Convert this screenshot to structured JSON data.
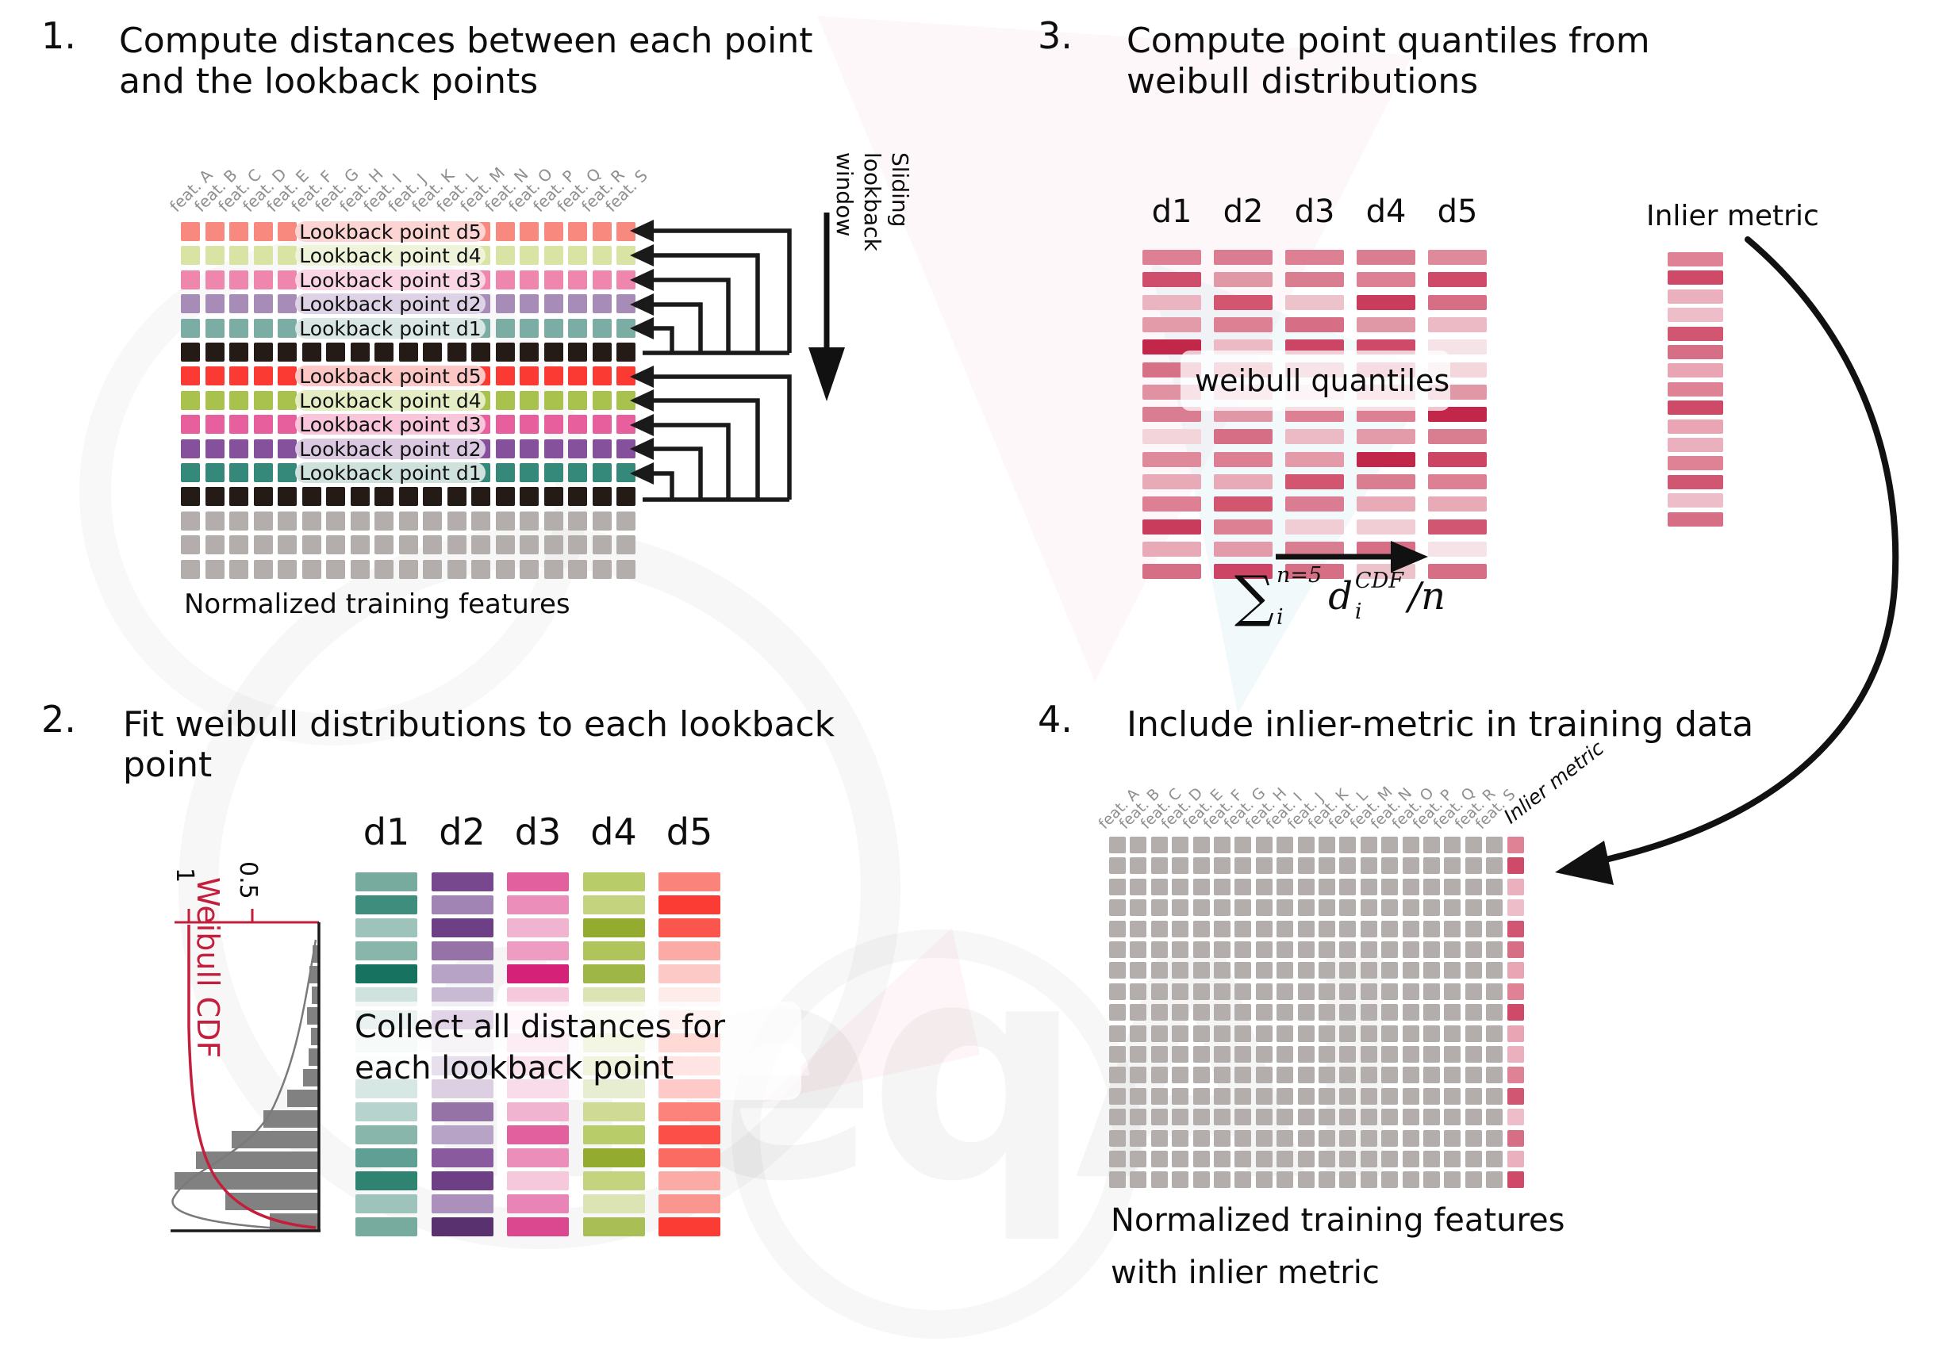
{
  "p1": {
    "number": "1.",
    "title": "Compute distances between each point and the lookback points",
    "caption": "Normalized training features",
    "sliding": "Sliding\nlookback\nwindow",
    "features": [
      "feat. A",
      "feat. B",
      "feat. C",
      "feat. D",
      "feat. E",
      "feat. F",
      "feat. G",
      "feat. H",
      "feat. I",
      "feat. J",
      "feat. K",
      "feat. L",
      "feat. M",
      "feat. N",
      "feat. O",
      "feat. P",
      "feat. Q",
      "feat. R",
      "feat. S"
    ],
    "rows": [
      {
        "color": "#f8897f",
        "label": "Lookback point d5",
        "pill": "#fcd4d1"
      },
      {
        "color": "#d9e3a3",
        "label": "Lookback point d4",
        "pill": "#eef3da"
      },
      {
        "color": "#ef86ad",
        "label": "Lookback point d3",
        "pill": "#fad5e4"
      },
      {
        "color": "#a78cb8",
        "label": "Lookback point d2",
        "pill": "#ded3e6"
      },
      {
        "color": "#7bada4",
        "label": "Lookback point d1",
        "pill": "#d8e7e4"
      },
      {
        "color": "#241b16"
      },
      {
        "color": "#fb3b33",
        "label": "Lookback point d5",
        "pill": "#fcc7c5"
      },
      {
        "color": "#a9c14d",
        "label": "Lookback point d4",
        "pill": "#e5edc4"
      },
      {
        "color": "#e85f9e",
        "label": "Lookback point d3",
        "pill": "#f8c5db"
      },
      {
        "color": "#85509c",
        "label": "Lookback point d2",
        "pill": "#dac9e1"
      },
      {
        "color": "#35897b",
        "label": "Lookback point d1",
        "pill": "#cfe1dd"
      },
      {
        "color": "#241b16"
      },
      {
        "color": "#b3aeac"
      },
      {
        "color": "#b3aeac"
      },
      {
        "color": "#b3aeac"
      }
    ]
  },
  "p2": {
    "number": "2.",
    "title": "Fit weibull distributions to each lookback point",
    "note_line1": "Collect all distances for",
    "note_line2": "each lookback point",
    "hist": {
      "cdf_label": "Weibull CDF",
      "tick1": "1",
      "tick2": "0.5",
      "bars": [
        8,
        12,
        9,
        15,
        10,
        13,
        20,
        40,
        70,
        110,
        155,
        182,
        118,
        62
      ]
    },
    "columns": [
      {
        "name": "d1",
        "shades": [
          "#76ab9e",
          "#3f8d7d",
          "#9dc3ba",
          "#88b6ab",
          "#17735f",
          "#cfe2dd",
          "#a9cbc3",
          "#dcebe7",
          "#edf4f2",
          "#66a396",
          "#b6d4cd",
          "#88b6ab",
          "#60a094",
          "#2f8371",
          "#9dc3ba",
          "#76ab9e"
        ]
      },
      {
        "name": "d2",
        "shades": [
          "#77488e",
          "#a184b3",
          "#6d3f85",
          "#9573a7",
          "#b7a3c5",
          "#c9bad4",
          "#8a5a9e",
          "#ded5e5",
          "#a184b3",
          "#77488e",
          "#9573a7",
          "#b7a3c5",
          "#8a5a9e",
          "#6d3f85",
          "#ab90bb",
          "#5a316f"
        ]
      },
      {
        "name": "d3",
        "shades": [
          "#e2609d",
          "#eb8fba",
          "#f1b4d0",
          "#ee9cc2",
          "#d62178",
          "#f5c8dc",
          "#f9dcea",
          "#f1b4d0",
          "#eb8fba",
          "#e579ae",
          "#f1b4d0",
          "#e2609d",
          "#eb8fba",
          "#f5c8dc",
          "#e885b6",
          "#db4890"
        ]
      },
      {
        "name": "d4",
        "shades": [
          "#b8cc6a",
          "#c3d37e",
          "#93ac30",
          "#afc45a",
          "#9eb646",
          "#dbe4b2",
          "#e7edcb",
          "#cfda95",
          "#c3d37e",
          "#a2b94b",
          "#cfda95",
          "#b8cc6a",
          "#93ac30",
          "#c3d37e",
          "#dbe4b2",
          "#a9be54"
        ]
      },
      {
        "name": "d5",
        "shades": [
          "#fa837b",
          "#fb3c35",
          "#fb564e",
          "#fcaaa5",
          "#fdc9c6",
          "#feecea",
          "#fccbc7",
          "#fb6b62",
          "#fa9690",
          "#fe2f28",
          "#fb837b",
          "#fb4f47",
          "#fb6b62",
          "#fcaaa5",
          "#fa9690",
          "#fb3c35"
        ]
      }
    ]
  },
  "p3": {
    "number": "3.",
    "title": "Compute point quantiles from weibull distributions",
    "overlay": "weibull quantiles",
    "inlier_label": "Inlier metric",
    "formula": {
      "sum": "∑",
      "sup": "n=5",
      "sub": "i",
      "var": "d",
      "var_sup": "CDF",
      "var_sub": "i",
      "tail": "/n"
    },
    "columns": [
      {
        "name": "d1",
        "shades": [
          "#dd8094",
          "#cf4e6b",
          "#eab4c0",
          "#e39aa9",
          "#c2274a",
          "#d77186",
          "#e092a2",
          "#db7d92",
          "#f2d4da",
          "#df8a9b",
          "#e8aab7",
          "#dd8094",
          "#c93c5c",
          "#e8aab7",
          "#d66f85"
        ]
      },
      {
        "name": "d2",
        "shades": [
          "#db7d92",
          "#e098a7",
          "#d2566f",
          "#dd8094",
          "#ecbac5",
          "#d97e91",
          "#eab4c0",
          "#e098a7",
          "#d66f85",
          "#dd8094",
          "#e8aab7",
          "#d2566f",
          "#dd8094",
          "#e39aa9",
          "#cc4564"
        ]
      },
      {
        "name": "d3",
        "shades": [
          "#dd8094",
          "#d97e91",
          "#ecc2cb",
          "#d66f85",
          "#cc4564",
          "#e098a7",
          "#f2d4da",
          "#dd8094",
          "#ecbac5",
          "#e39aa9",
          "#d2566f",
          "#db7d92",
          "#f0cdd4",
          "#d97e91",
          "#d66f85"
        ]
      },
      {
        "name": "d4",
        "shades": [
          "#d97e91",
          "#dd8094",
          "#c93c5c",
          "#e098a7",
          "#ce4a68",
          "#db7d92",
          "#e8aab7",
          "#dd8094",
          "#e39aa9",
          "#c2274a",
          "#d97e91",
          "#e8aab7",
          "#f0cdd4",
          "#d66f85",
          "#ecc2cb"
        ]
      },
      {
        "name": "d5",
        "shades": [
          "#df8a9b",
          "#ce4a68",
          "#d66f85",
          "#ecbac5",
          "#f6e3e7",
          "#f3d7dc",
          "#e098a7",
          "#c2274a",
          "#d97e91",
          "#cc4564",
          "#dd8094",
          "#e8aab7",
          "#d05672",
          "#f6e3e7",
          "#d66f85"
        ]
      }
    ],
    "inlier_shades": [
      "#df8296",
      "#ce4a68",
      "#eab0bd",
      "#edbec9",
      "#d05672",
      "#d66f85",
      "#e9a5b3",
      "#df8296",
      "#ce4a68",
      "#e9a5b3",
      "#eab0bd",
      "#df8296",
      "#d05672",
      "#edbec9",
      "#d66f85"
    ]
  },
  "p4": {
    "number": "4.",
    "title": "Include inlier-metric in training data",
    "features": [
      "feat. A",
      "feat. B",
      "feat. C",
      "feat. D",
      "feat. E",
      "feat. F",
      "feat. G",
      "feat. H",
      "feat. I",
      "feat. J",
      "feat. K",
      "feat. L",
      "feat. M",
      "feat. N",
      "feat. O",
      "feat. P",
      "feat. Q",
      "feat. R",
      "feat. S"
    ],
    "inlier_label": "Inlier metric",
    "caption_line1": "Normalized training features",
    "caption_line2": "with inlier metric",
    "grid_color": "#b3aeac",
    "rows": 17,
    "inlier_shades": [
      "#df8296",
      "#ce4a68",
      "#eab0bd",
      "#edbec9",
      "#d05672",
      "#d66f85",
      "#e9a5b3",
      "#df8296",
      "#ce4a68",
      "#e9a5b3",
      "#eab0bd",
      "#df8296",
      "#d05672",
      "#edbec9",
      "#d66f85",
      "#eab0bd",
      "#ce4a68"
    ]
  },
  "watermark": "freqAI",
  "colors": {
    "arrow": "#111111",
    "cdf_red": "#c41e3d",
    "hist_gray": "#818181",
    "text": "#0d0d0d"
  }
}
